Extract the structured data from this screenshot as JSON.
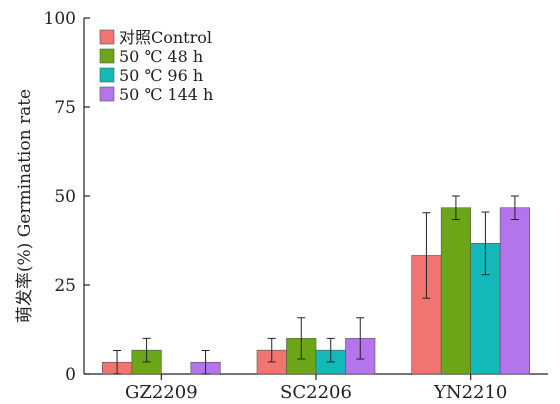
{
  "chart_data": {
    "type": "bar",
    "title": "",
    "xlabel": "",
    "ylabel": "萌发率(%) Germination rate",
    "ylim": [
      0,
      100
    ],
    "yticks": [
      0,
      25,
      50,
      75,
      100
    ],
    "grid": false,
    "legend_position": "top-left",
    "categories": [
      "GZ2209",
      "SC2206",
      "YN2210"
    ],
    "series": [
      {
        "name": "对照Control",
        "color": "#f07470",
        "values": [
          3.3,
          6.7,
          33.3
        ],
        "errors": [
          3.3,
          3.3,
          12.0
        ]
      },
      {
        "name": "50 ℃ 48 h",
        "color": "#6aa617",
        "values": [
          6.7,
          10.0,
          46.7
        ],
        "errors": [
          3.3,
          5.8,
          3.3
        ]
      },
      {
        "name": "50 ℃ 96 h",
        "color": "#14b8b8",
        "values": [
          0,
          6.7,
          36.7
        ],
        "errors": [
          0,
          3.3,
          8.8
        ]
      },
      {
        "name": "50 ℃ 144 h",
        "color": "#b374ec",
        "values": [
          3.3,
          10.0,
          46.7
        ],
        "errors": [
          3.3,
          5.8,
          3.3
        ]
      }
    ]
  }
}
